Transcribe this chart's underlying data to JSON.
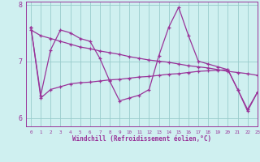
{
  "background_color": "#cff0f0",
  "line_color": "#993399",
  "grid_color": "#99cccc",
  "xlim": [
    -0.5,
    23
  ],
  "ylim": [
    5.85,
    8.05
  ],
  "yticks": [
    6,
    7,
    8
  ],
  "xticks": [
    0,
    1,
    2,
    3,
    4,
    5,
    6,
    7,
    8,
    9,
    10,
    11,
    12,
    13,
    14,
    15,
    16,
    17,
    18,
    19,
    20,
    21,
    22,
    23
  ],
  "xlabel": "Windchill (Refroidissement éolien,°C)",
  "hours": [
    0,
    1,
    2,
    3,
    4,
    5,
    6,
    7,
    8,
    9,
    10,
    11,
    12,
    13,
    14,
    15,
    16,
    17,
    18,
    19,
    20,
    21,
    22,
    23
  ],
  "top_line": [
    7.55,
    7.45,
    7.4,
    7.35,
    7.3,
    7.25,
    7.22,
    7.18,
    7.15,
    7.12,
    7.08,
    7.05,
    7.02,
    7.0,
    6.98,
    6.95,
    6.92,
    6.9,
    6.88,
    6.85,
    6.82,
    6.8,
    6.78,
    6.75
  ],
  "mid_line": [
    7.6,
    6.4,
    7.2,
    7.55,
    7.5,
    7.4,
    7.35,
    7.05,
    6.65,
    6.3,
    6.35,
    6.4,
    6.5,
    7.1,
    7.6,
    7.95,
    7.45,
    7.0,
    6.95,
    6.9,
    6.85,
    6.5,
    6.15,
    6.45
  ],
  "bot_line": [
    7.6,
    6.35,
    6.5,
    6.55,
    6.6,
    6.62,
    6.63,
    6.65,
    6.67,
    6.68,
    6.7,
    6.72,
    6.73,
    6.75,
    6.77,
    6.78,
    6.8,
    6.82,
    6.83,
    6.84,
    6.85,
    6.5,
    6.12,
    6.45
  ]
}
